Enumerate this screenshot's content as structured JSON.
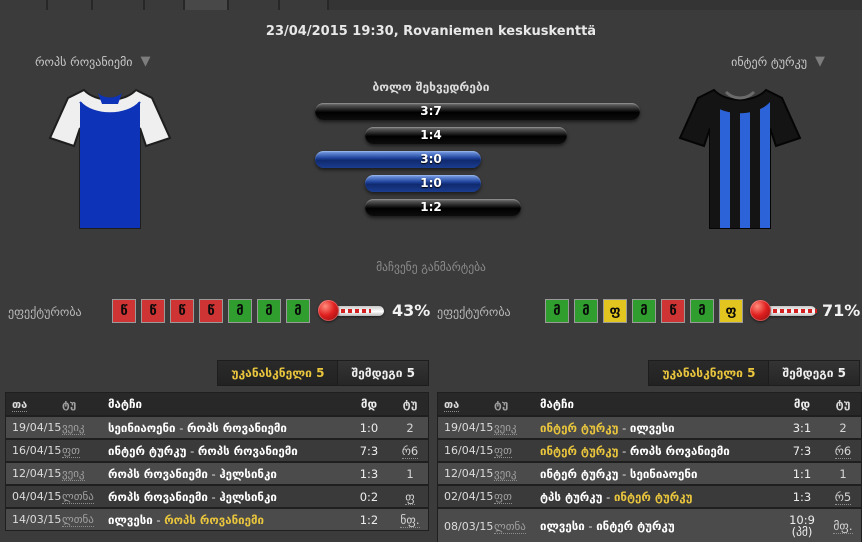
{
  "header": {
    "title": "23/04/2015 19:30, Rovaniemen keskuskenttä"
  },
  "home_team": {
    "name": "როპს როვანიემი"
  },
  "away_team": {
    "name": "ინტერ ტურკუ"
  },
  "h2h": {
    "title": "ბოლო შეხვედრები",
    "bars": [
      {
        "score": "3:7",
        "variant": "black",
        "left_pct": 0,
        "width_pct": 98
      },
      {
        "score": "1:4",
        "variant": "black",
        "left_pct": 15,
        "width_pct": 61
      },
      {
        "score": "3:0",
        "variant": "blue",
        "left_pct": 0,
        "width_pct": 50
      },
      {
        "score": "1:0",
        "variant": "blue",
        "left_pct": 15,
        "width_pct": 35
      },
      {
        "score": "1:2",
        "variant": "black",
        "left_pct": 15,
        "width_pct": 47
      }
    ]
  },
  "explain_link": "მაჩვენე განმარტება",
  "effectiveness": {
    "label": "ეფექტურობა",
    "home": {
      "pct": "43%",
      "fill": 43,
      "form": [
        {
          "l": "წ",
          "r": "loss"
        },
        {
          "l": "წ",
          "r": "loss"
        },
        {
          "l": "წ",
          "r": "loss"
        },
        {
          "l": "წ",
          "r": "loss"
        },
        {
          "l": "მ",
          "r": "win"
        },
        {
          "l": "მ",
          "r": "win"
        },
        {
          "l": "მ",
          "r": "win"
        }
      ]
    },
    "away": {
      "pct": "71%",
      "fill": 71,
      "form": [
        {
          "l": "მ",
          "r": "win"
        },
        {
          "l": "მ",
          "r": "win"
        },
        {
          "l": "ფ",
          "r": "draw"
        },
        {
          "l": "მ",
          "r": "win"
        },
        {
          "l": "წ",
          "r": "loss"
        },
        {
          "l": "მ",
          "r": "win"
        },
        {
          "l": "ფ",
          "r": "draw"
        }
      ]
    }
  },
  "history_tabs": {
    "last": "უკანასკნელი 5",
    "next": "შემდეგი 5"
  },
  "table_headers": [
    {
      "label": "თა",
      "u": true
    },
    {
      "label": "ტუ",
      "u": false
    },
    {
      "label": "მატჩი",
      "u": false
    },
    {
      "label": "მდ",
      "u": false
    },
    {
      "label": "ტუ",
      "u": false
    }
  ],
  "home_table": {
    "rows": [
      {
        "date": "19/04/15",
        "tour": "ვეიკ",
        "t1": "სეინიაოენი",
        "hl1": false,
        "t2": "როპს როვანიემი",
        "hl2": false,
        "score": "1:0",
        "round": "2",
        "round_u": false
      },
      {
        "date": "16/04/15",
        "tour": "ფთ",
        "t1": "ინტერ ტურკუ",
        "hl1": false,
        "t2": "როპს როვანიემი",
        "hl2": false,
        "score": "7:3",
        "round": "რ6",
        "round_u": true
      },
      {
        "date": "12/04/15",
        "tour": "ვეიკ",
        "t1": "როპს როვანიემი",
        "hl1": false,
        "t2": "ჰელსინკი",
        "hl2": false,
        "score": "1:3",
        "round": "1",
        "round_u": false
      },
      {
        "date": "04/04/15",
        "tour": "ლთნა",
        "t1": "როპს როვანიემი",
        "hl1": false,
        "t2": "ჰელსინკი",
        "hl2": false,
        "score": "0:2",
        "round": "ფ",
        "round_u": true
      },
      {
        "date": "14/03/15",
        "tour": "ლთნა",
        "t1": "ილვესი",
        "hl1": false,
        "t2": "როპს როვანიემი",
        "hl2": true,
        "score": "1:2",
        "round": "ნფ.",
        "round_u": true
      }
    ]
  },
  "away_table": {
    "rows": [
      {
        "date": "19/04/15",
        "tour": "ვეიკ",
        "t1": "ინტერ ტურკუ",
        "hl1": true,
        "t2": "ილვესი",
        "hl2": false,
        "score": "3:1",
        "round": "2",
        "round_u": false
      },
      {
        "date": "16/04/15",
        "tour": "ფთ",
        "t1": "ინტერ ტურკუ",
        "hl1": true,
        "t2": "როპს როვანიემი",
        "hl2": false,
        "score": "7:3",
        "round": "რ6",
        "round_u": true
      },
      {
        "date": "12/04/15",
        "tour": "ვეიკ",
        "t1": "ინტერ ტურკუ",
        "hl1": false,
        "t2": "სეინიაოენი",
        "hl2": false,
        "score": "1:1",
        "round": "1",
        "round_u": false
      },
      {
        "date": "02/04/15",
        "tour": "ფთ",
        "t1": "ტპს ტურკუ",
        "hl1": false,
        "t2": "ინტერ ტურკუ",
        "hl2": true,
        "score": "1:3",
        "round": "რ5",
        "round_u": true
      },
      {
        "date": "08/03/15",
        "tour": "ლთნა",
        "t1": "ილვესი",
        "hl1": false,
        "t2": "ინტერ ტურკუ",
        "hl2": false,
        "score": "10:9 (პმ)",
        "score2": [
          "10:9",
          "(პმ)"
        ],
        "round": "მფ.",
        "round_u": true
      }
    ]
  },
  "colors": {
    "yellow": "#e9c53d",
    "win": "#2f9e2f",
    "loss": "#ce3434",
    "draw": "#e3c51f",
    "bar_blue": "#1d429a"
  }
}
